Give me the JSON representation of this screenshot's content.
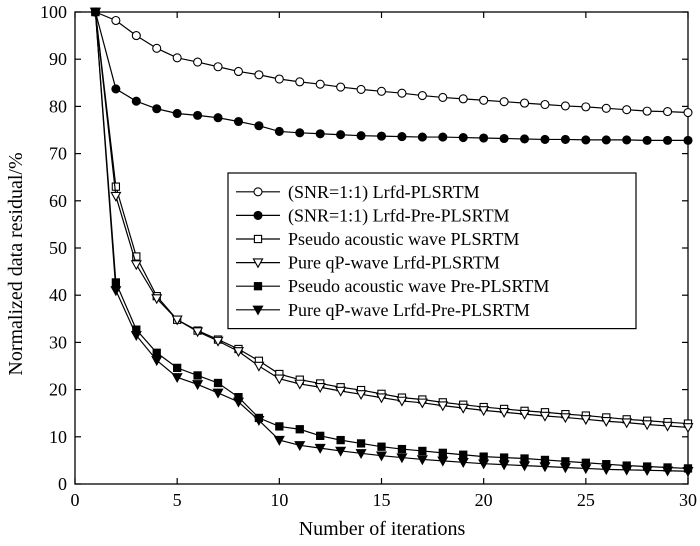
{
  "chart_data": {
    "type": "line",
    "title": "",
    "xlabel": "Number of iterations",
    "ylabel": "Normalized data residual/%",
    "xlim": [
      0,
      30
    ],
    "ylim": [
      0,
      100
    ],
    "xticks": [
      0,
      5,
      10,
      15,
      20,
      25,
      30
    ],
    "yticks": [
      0,
      10,
      20,
      30,
      40,
      50,
      60,
      70,
      80,
      90,
      100
    ],
    "legend_position": "center-right",
    "x": [
      1,
      2,
      3,
      4,
      5,
      6,
      7,
      8,
      9,
      10,
      11,
      12,
      13,
      14,
      15,
      16,
      17,
      18,
      19,
      20,
      21,
      22,
      23,
      24,
      25,
      26,
      27,
      28,
      29,
      30
    ],
    "series": [
      {
        "name": "(SNR=1:1) Lrfd-PLSRTM",
        "marker": "circle-open",
        "values": [
          100,
          98.2,
          95,
          92.3,
          90.3,
          89.4,
          88.4,
          87.4,
          86.7,
          85.8,
          85.2,
          84.7,
          84.1,
          83.6,
          83.2,
          82.8,
          82.3,
          81.9,
          81.6,
          81.3,
          81.0,
          80.7,
          80.4,
          80.1,
          79.9,
          79.6,
          79.3,
          79.0,
          78.9,
          78.7
        ]
      },
      {
        "name": "(SNR=1:1) Lrfd-Pre-PLSRTM",
        "marker": "circle-filled",
        "values": [
          100,
          83.7,
          81.1,
          79.5,
          78.5,
          78.1,
          77.6,
          76.8,
          75.9,
          74.7,
          74.4,
          74.2,
          74.0,
          73.8,
          73.7,
          73.6,
          73.5,
          73.5,
          73.4,
          73.3,
          73.2,
          73.1,
          73.0,
          73.0,
          72.9,
          72.9,
          72.9,
          72.8,
          72.8,
          72.8
        ]
      },
      {
        "name": "Pseudo acoustic wave PLSRTM",
        "marker": "square-open",
        "values": [
          100,
          63,
          48.2,
          39.8,
          34.8,
          32.5,
          30.6,
          28.6,
          26.1,
          23.3,
          22.1,
          21.3,
          20.5,
          19.9,
          19.1,
          18.3,
          17.9,
          17.3,
          16.8,
          16.3,
          15.9,
          15.5,
          15.2,
          14.8,
          14.5,
          14.1,
          13.7,
          13.4,
          13.1,
          12.8
        ]
      },
      {
        "name": "Pure qP-wave Lrfd-PLSRTM",
        "marker": "triangle-down-open",
        "values": [
          100,
          61,
          46.5,
          39.3,
          34.8,
          32.3,
          30.3,
          28.1,
          25.0,
          22.3,
          21.2,
          20.5,
          19.7,
          19.0,
          18.3,
          17.6,
          17.2,
          16.6,
          16.1,
          15.6,
          15.2,
          14.8,
          14.4,
          14.1,
          13.7,
          13.3,
          13.0,
          12.6,
          12.3,
          12.0
        ]
      },
      {
        "name": "Pseudo acoustic wave Pre-PLSRTM",
        "marker": "square-filled",
        "values": [
          100,
          42.7,
          32.7,
          27.8,
          24.6,
          23.0,
          21.4,
          18.4,
          14.0,
          12.2,
          11.6,
          10.2,
          9.3,
          8.6,
          7.9,
          7.4,
          7.0,
          6.6,
          6.2,
          5.8,
          5.6,
          5.4,
          5.1,
          4.8,
          4.5,
          4.2,
          3.9,
          3.7,
          3.5,
          3.3
        ]
      },
      {
        "name": "Pure qP-wave Lrfd-Pre-PLSRTM",
        "marker": "triangle-down-filled",
        "values": [
          100,
          41,
          31.5,
          26.2,
          22.6,
          21.1,
          19.3,
          17.4,
          13.5,
          9.3,
          8.2,
          7.6,
          7.0,
          6.5,
          6.0,
          5.6,
          5.2,
          4.9,
          4.6,
          4.3,
          4.1,
          3.9,
          3.7,
          3.5,
          3.3,
          3.1,
          3.0,
          2.9,
          2.8,
          2.7
        ]
      }
    ]
  }
}
